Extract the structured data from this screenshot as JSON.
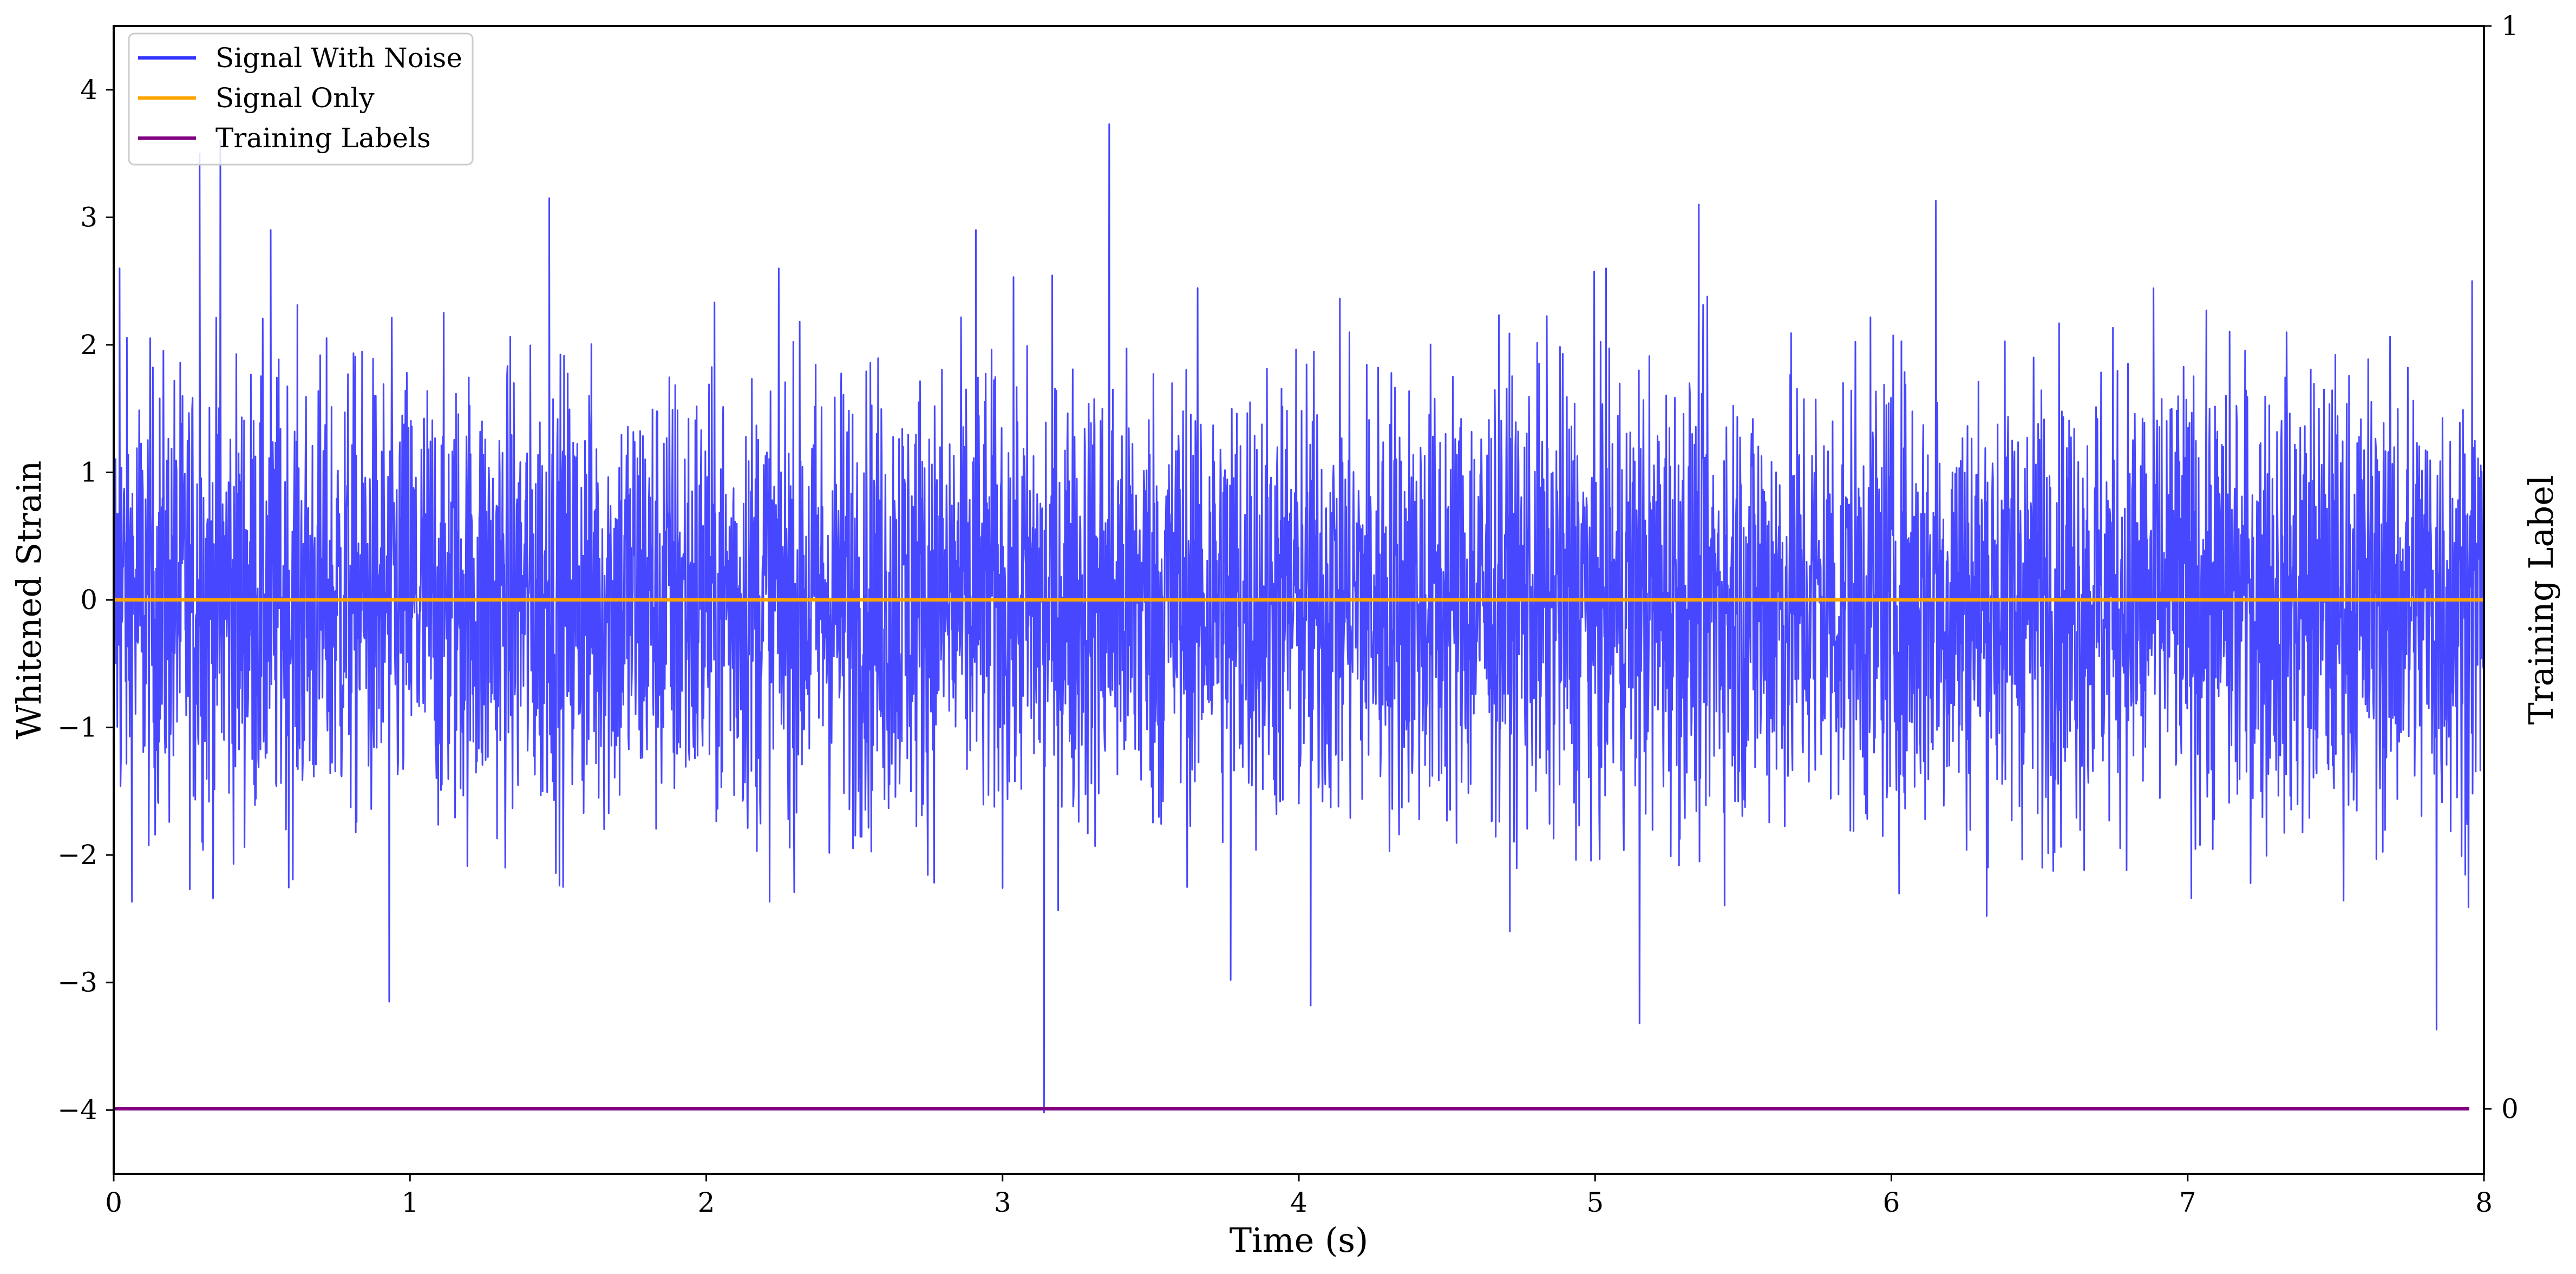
{
  "chart_data": {
    "type": "line",
    "xlabel": "Time (s)",
    "ylabel": "Whitened Strain",
    "y2label": "Training Label",
    "xlim": [
      0,
      8
    ],
    "ylim": [
      -4.5,
      4.5
    ],
    "y2lim": [
      -0.06,
      1.0
    ],
    "x_ticks": [
      0,
      1,
      2,
      3,
      4,
      5,
      6,
      7,
      8
    ],
    "y_ticks": [
      -4,
      -3,
      -2,
      -1,
      0,
      1,
      2,
      3,
      4
    ],
    "y_tick_labels": [
      "−4",
      "−3",
      "−2",
      "−1",
      "0",
      "1",
      "2",
      "3",
      "4"
    ],
    "y2_ticks": [
      0,
      1
    ],
    "grid": false,
    "legend_position": "top-left",
    "series": [
      {
        "name": "Signal With Noise",
        "color": "#3333ff",
        "axis": "left",
        "description": "white noise roughly between -2.5 and 2.5",
        "peaks": [
          {
            "x": 0.02,
            "y": 2.6
          },
          {
            "x": 0.29,
            "y": 3.5
          },
          {
            "x": 0.36,
            "y": 3.6
          },
          {
            "x": 0.53,
            "y": 2.9
          },
          {
            "x": 0.93,
            "y": -3.15
          },
          {
            "x": 1.47,
            "y": 3.15
          },
          {
            "x": 2.91,
            "y": 2.9
          },
          {
            "x": 3.14,
            "y": -4.02
          },
          {
            "x": 3.36,
            "y": 3.73
          },
          {
            "x": 3.77,
            "y": -2.98
          },
          {
            "x": 4.04,
            "y": -3.18
          },
          {
            "x": 5.15,
            "y": -3.32
          },
          {
            "x": 5.35,
            "y": 3.1
          },
          {
            "x": 6.15,
            "y": 3.13
          },
          {
            "x": 7.84,
            "y": -3.37
          },
          {
            "x": 7.96,
            "y": 2.5
          }
        ]
      },
      {
        "name": "Signal Only",
        "color": "#ffa500",
        "axis": "left",
        "x": [
          0,
          8
        ],
        "y": [
          0,
          0
        ]
      },
      {
        "name": "Training Labels",
        "color": "#800080",
        "axis": "right",
        "x": [
          0,
          7.95
        ],
        "y": [
          0,
          0
        ]
      }
    ]
  }
}
